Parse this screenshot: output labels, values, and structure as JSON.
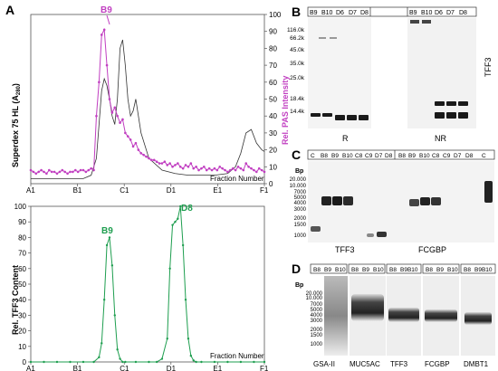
{
  "panels": {
    "A": "A",
    "B": "B",
    "C": "C",
    "D": "D"
  },
  "colors": {
    "magenta": "#c13fc1",
    "green": "#1e9e4f",
    "trace": "#333333",
    "blot_bg": "#f0f0f0",
    "band": "#1a1a1a"
  },
  "panel_a_top": {
    "ylabel_left": "Superdex 75 HL (A",
    "ylabel_left_sub": "280",
    "ylabel_left_end": ")",
    "ylabel_right": "Rel. PAS Intensity",
    "xlabel": "Fraction Number",
    "peak_label": "B9",
    "y_ticks_right": [
      "0",
      "10",
      "20",
      "30",
      "40",
      "50",
      "60",
      "70",
      "80",
      "90",
      "100"
    ],
    "x_ticks": [
      "A1",
      "B1",
      "C1",
      "D1",
      "E1",
      "F1"
    ]
  },
  "panel_a_bottom": {
    "ylabel": "Rel. TFF3 Content",
    "xlabel": "Fraction Number",
    "peak1": "B9",
    "peak2": "D8",
    "y_ticks": [
      "0",
      "10",
      "20",
      "30",
      "40",
      "50",
      "60",
      "70",
      "80",
      "90",
      "100"
    ],
    "x_ticks": [
      "A1",
      "B1",
      "C1",
      "D1",
      "E1",
      "F1"
    ]
  },
  "panel_b": {
    "lanes_r": [
      "B9",
      "B10",
      "D6",
      "D7",
      "D8"
    ],
    "lanes_nr": [
      "B9",
      "B10",
      "D6",
      "D7",
      "D8"
    ],
    "markers": [
      "116.0k",
      "66.2k",
      "45.0k",
      "35.0k",
      "25.0k",
      "18.4k",
      "14.4k"
    ],
    "label_r": "R",
    "label_nr": "NR",
    "side_label": "TFF3"
  },
  "panel_c": {
    "lanes_left": [
      "C",
      "B8",
      "B9",
      "B10",
      "C8",
      "C9",
      "D7",
      "D8"
    ],
    "lanes_right": [
      "B8",
      "B9",
      "B10",
      "C8",
      "C9",
      "D7",
      "D8",
      "C"
    ],
    "bp": "Bp",
    "markers": [
      "20.000",
      "10.000",
      "7000",
      "5000",
      "4000",
      "3000",
      "2000",
      "1500",
      "1000"
    ],
    "label_left": "TFF3",
    "label_right": "FCGBP"
  },
  "panel_d": {
    "groups": [
      {
        "lanes": [
          "B8",
          "B9",
          "B10"
        ],
        "label": "GSA-II"
      },
      {
        "lanes": [
          "B8",
          "B9",
          "B10"
        ],
        "label": "MUC5AC"
      },
      {
        "lanes": [
          "B8",
          "B9B10"
        ],
        "label": "TFF3"
      },
      {
        "lanes": [
          "B8",
          "B9",
          "B10"
        ],
        "label": "FCGBP"
      },
      {
        "lanes": [
          "B8",
          "B9B10"
        ],
        "label": "DMBT1"
      }
    ],
    "bp": "Bp",
    "markers": [
      "20.000",
      "10.000",
      "7000",
      "5000",
      "4000",
      "3000",
      "2000",
      "1500",
      "1000"
    ]
  },
  "chart_data": [
    {
      "type": "line",
      "ylabel": "Rel. PAS Intensity",
      "ylim": [
        0,
        100
      ],
      "series": [
        {
          "name": "PAS",
          "x": [
            0,
            1,
            2,
            3,
            4,
            5,
            6,
            7,
            8,
            9,
            10,
            11,
            12,
            13,
            14,
            15,
            16,
            17,
            18,
            19,
            20,
            21,
            22,
            23,
            24,
            25,
            26,
            27,
            28,
            29,
            30,
            31,
            32,
            33,
            34,
            35,
            36,
            37,
            38,
            39,
            40,
            41,
            42,
            43,
            44,
            45,
            46,
            47,
            48,
            49,
            50,
            51,
            52,
            53,
            54,
            55,
            56,
            57,
            58,
            59,
            60,
            61,
            62,
            63,
            64,
            65,
            66,
            67,
            68,
            69,
            70,
            71,
            72,
            73,
            74,
            75,
            76,
            77,
            78,
            79,
            80,
            81,
            82,
            83,
            84,
            85,
            86,
            87,
            88,
            89
          ],
          "y": [
            8,
            7,
            6,
            7,
            8,
            7,
            6,
            8,
            7,
            7,
            6,
            7,
            8,
            7,
            6,
            7,
            7,
            8,
            7,
            8,
            8,
            7,
            8,
            9,
            8,
            40,
            60,
            88,
            91,
            70,
            50,
            42,
            45,
            40,
            36,
            38,
            30,
            28,
            26,
            22,
            24,
            20,
            18,
            17,
            16,
            15,
            14,
            14,
            13,
            12,
            12,
            13,
            11,
            12,
            10,
            11,
            12,
            10,
            9,
            11,
            10,
            12,
            9,
            10,
            8,
            9,
            10,
            8,
            9,
            8,
            9,
            8,
            10,
            9,
            8,
            7,
            8,
            9,
            8,
            10,
            9,
            8,
            12,
            10,
            9,
            8,
            7,
            9,
            8,
            7
          ]
        },
        {
          "name": "A280",
          "x": [
            0,
            5,
            10,
            15,
            20,
            23,
            25,
            26,
            27,
            28,
            29,
            30,
            31,
            32,
            33,
            34,
            35,
            36,
            37,
            38,
            39,
            40,
            42,
            45,
            50,
            55,
            60,
            65,
            70,
            75,
            78,
            80,
            82,
            84,
            86,
            88,
            89
          ],
          "y": [
            3,
            3,
            3,
            3,
            3,
            5,
            15,
            35,
            55,
            62,
            58,
            50,
            40,
            35,
            50,
            80,
            85,
            70,
            50,
            40,
            43,
            50,
            30,
            15,
            8,
            6,
            5,
            5,
            5,
            6,
            10,
            18,
            30,
            32,
            24,
            20,
            19
          ]
        }
      ]
    },
    {
      "type": "line",
      "ylabel": "Rel. TFF3 Content",
      "ylim": [
        0,
        100
      ],
      "series": [
        {
          "name": "TFF3",
          "x": [
            0,
            5,
            10,
            15,
            20,
            24,
            26,
            27,
            28,
            29,
            30,
            31,
            32,
            33,
            34,
            35,
            36,
            40,
            45,
            48,
            50,
            52,
            53,
            54,
            55,
            56,
            57,
            58,
            59,
            60,
            61,
            62,
            63,
            65,
            70,
            75,
            80,
            85,
            89
          ],
          "y": [
            0,
            0,
            0,
            0,
            0,
            0,
            3,
            12,
            40,
            75,
            80,
            62,
            30,
            8,
            2,
            0,
            0,
            0,
            0,
            0,
            2,
            15,
            60,
            88,
            90,
            92,
            100,
            75,
            40,
            15,
            4,
            1,
            0,
            0,
            0,
            0,
            0,
            0,
            0
          ]
        }
      ]
    }
  ]
}
